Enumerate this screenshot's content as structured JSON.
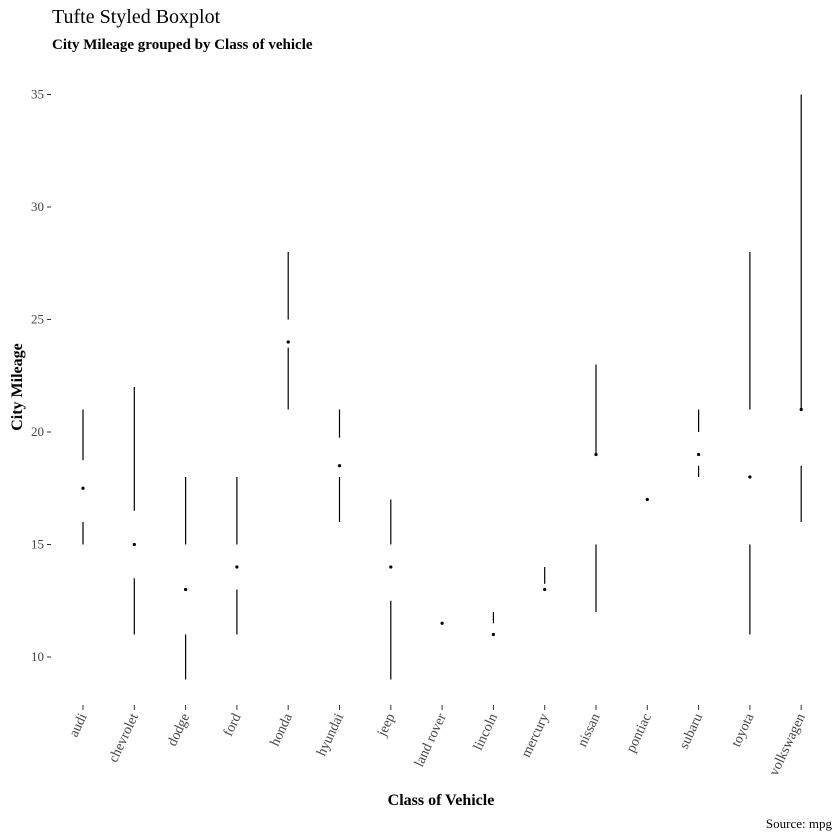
{
  "chart_data": {
    "type": "boxplot",
    "title": "Tufte Styled Boxplot",
    "subtitle": "City Mileage grouped by Class of vehicle",
    "xlabel": "Class of Vehicle",
    "ylabel": "City Mileage",
    "caption": "Source: mpg",
    "ylim": [
      8,
      36
    ],
    "yticks": [
      10,
      15,
      20,
      25,
      30,
      35
    ],
    "grid": false,
    "categories": [
      "audi",
      "chevrolet",
      "dodge",
      "ford",
      "honda",
      "hyundai",
      "jeep",
      "land rover",
      "lincoln",
      "mercury",
      "nissan",
      "pontiac",
      "subaru",
      "toyota",
      "volkswagen"
    ],
    "boxes": [
      {
        "category": "audi",
        "min": 15,
        "q1": 16,
        "median": 17.5,
        "q3": 18.75,
        "max": 21
      },
      {
        "category": "chevrolet",
        "min": 11,
        "q1": 13.5,
        "median": 15,
        "q3": 16.5,
        "max": 22
      },
      {
        "category": "dodge",
        "min": 9,
        "q1": 11,
        "median": 13,
        "q3": 15,
        "max": 18
      },
      {
        "category": "ford",
        "min": 11,
        "q1": 13,
        "median": 14,
        "q3": 15,
        "max": 18
      },
      {
        "category": "honda",
        "min": 21,
        "q1": 23.75,
        "median": 24,
        "q3": 25,
        "max": 28
      },
      {
        "category": "hyundai",
        "min": 16,
        "q1": 18,
        "median": 18.5,
        "q3": 19.75,
        "max": 21
      },
      {
        "category": "jeep",
        "min": 9,
        "q1": 12.5,
        "median": 14,
        "q3": 15,
        "max": 17
      },
      {
        "category": "land rover",
        "min": 11.5,
        "q1": 11.5,
        "median": 11.5,
        "q3": 11.5,
        "max": 11.5
      },
      {
        "category": "lincoln",
        "min": 11,
        "q1": 11,
        "median": 11,
        "q3": 11.5,
        "max": 12
      },
      {
        "category": "mercury",
        "min": 13,
        "q1": 13,
        "median": 13,
        "q3": 13.25,
        "max": 14
      },
      {
        "category": "nissan",
        "min": 12,
        "q1": 15,
        "median": 19,
        "q3": 19,
        "max": 23
      },
      {
        "category": "pontiac",
        "min": 17,
        "q1": 17,
        "median": 17,
        "q3": 17,
        "max": 17
      },
      {
        "category": "subaru",
        "min": 18,
        "q1": 18.5,
        "median": 19,
        "q3": 20,
        "max": 21
      },
      {
        "category": "toyota",
        "min": 11,
        "q1": 15,
        "median": 18,
        "q3": 21,
        "max": 28
      },
      {
        "category": "volkswagen",
        "min": 16,
        "q1": 18.5,
        "median": 21,
        "q3": 21,
        "max": 35
      }
    ]
  }
}
